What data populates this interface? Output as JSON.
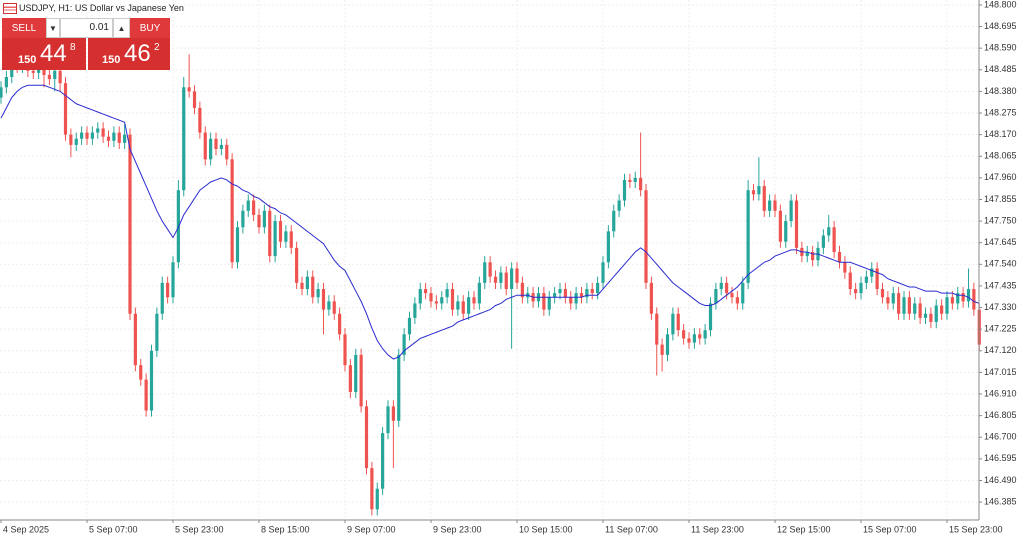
{
  "header": {
    "title": "USDJPY, H1:  US Dollar vs Japanese Yen"
  },
  "trade_panel": {
    "sell_label": "SELL",
    "buy_label": "BUY",
    "volume": "0.01",
    "sell_price": {
      "big_figure": "150",
      "pips": "44",
      "point": "8"
    },
    "buy_price": {
      "big_figure": "150",
      "pips": "46",
      "point": "2"
    }
  },
  "chart_data": {
    "type": "candlestick",
    "grid": true,
    "up_color": "#26a69a",
    "down_color": "#ef5350",
    "categories": [
      "4 Sep 2025",
      null,
      null,
      null,
      null,
      null,
      null,
      null,
      null,
      null,
      null,
      null,
      null,
      null,
      null,
      null,
      "5 Sep 07:00",
      null,
      null,
      null,
      null,
      null,
      null,
      null,
      null,
      null,
      null,
      null,
      null,
      null,
      null,
      null,
      "5 Sep 23:00",
      null,
      null,
      null,
      null,
      null,
      null,
      null,
      null,
      null,
      null,
      null,
      null,
      null,
      null,
      null,
      "8 Sep 15:00",
      null,
      null,
      null,
      null,
      null,
      null,
      null,
      null,
      null,
      null,
      null,
      null,
      null,
      null,
      null,
      "9 Sep 07:00",
      null,
      null,
      null,
      null,
      null,
      null,
      null,
      null,
      null,
      null,
      null,
      null,
      null,
      null,
      null,
      "9 Sep 23:00",
      null,
      null,
      null,
      null,
      null,
      null,
      null,
      null,
      null,
      null,
      null,
      null,
      null,
      null,
      null,
      "10 Sep 15:00",
      null,
      null,
      null,
      null,
      null,
      null,
      null,
      null,
      null,
      null,
      null,
      null,
      null,
      null,
      null,
      "11 Sep 07:00",
      null,
      null,
      null,
      null,
      null,
      null,
      null,
      null,
      null,
      null,
      null,
      null,
      null,
      null,
      null,
      "11 Sep 23:00",
      null,
      null,
      null,
      null,
      null,
      null,
      null,
      null,
      null,
      null,
      null,
      null,
      null,
      null,
      null,
      "12 Sep 15:00",
      null,
      null,
      null,
      null,
      null,
      null,
      null,
      null,
      null,
      null,
      null,
      null,
      null,
      null,
      null,
      "15 Sep 07:00",
      null,
      null,
      null,
      null,
      null,
      null,
      null,
      null,
      null,
      null,
      null,
      null,
      null,
      null,
      null,
      "15 Sep 23:00",
      null,
      null,
      null,
      null,
      null,
      null
    ],
    "open": [
      148.35,
      148.4,
      148.45,
      148.52,
      148.5,
      148.53,
      148.48,
      148.47,
      148.5,
      148.46,
      148.44,
      148.48,
      148.42,
      148.17,
      148.12,
      148.15,
      148.18,
      148.15,
      148.18,
      148.2,
      148.16,
      148.14,
      148.18,
      148.13,
      148.17,
      147.3,
      147.05,
      146.98,
      146.83,
      147.12,
      147.3,
      147.45,
      147.38,
      147.55,
      147.9,
      148.4,
      148.38,
      148.3,
      148.18,
      148.05,
      148.15,
      148.1,
      148.12,
      148.05,
      147.55,
      147.72,
      147.8,
      147.85,
      147.78,
      147.72,
      147.8,
      147.58,
      147.75,
      147.65,
      147.7,
      147.62,
      147.45,
      147.42,
      147.48,
      147.38,
      147.42,
      147.32,
      147.36,
      147.3,
      147.2,
      147.05,
      146.92,
      147.1,
      146.85,
      146.55,
      146.35,
      146.45,
      146.72,
      146.85,
      146.78,
      147.1,
      147.2,
      147.28,
      147.35,
      147.42,
      147.4,
      147.36,
      147.35,
      147.38,
      147.42,
      147.32,
      147.36,
      147.3,
      147.38,
      147.35,
      147.45,
      147.55,
      147.48,
      147.45,
      147.5,
      147.42,
      147.52,
      147.45,
      147.38,
      147.4,
      147.36,
      147.4,
      147.32,
      147.38,
      147.4,
      147.42,
      147.38,
      147.35,
      147.4,
      147.38,
      147.42,
      147.4,
      147.45,
      147.55,
      147.7,
      147.8,
      147.85,
      147.95,
      147.94,
      147.96,
      147.9,
      147.45,
      147.3,
      147.15,
      147.1,
      147.2,
      147.3,
      147.22,
      147.18,
      147.16,
      147.2,
      147.18,
      147.22,
      147.35,
      147.42,
      147.45,
      147.4,
      147.38,
      147.35,
      147.45,
      147.9,
      147.88,
      147.92,
      147.8,
      147.85,
      147.8,
      147.65,
      147.75,
      147.85,
      147.62,
      147.58,
      147.6,
      147.56,
      147.62,
      147.68,
      147.72,
      147.6,
      147.55,
      147.5,
      147.42,
      147.4,
      147.45,
      147.48,
      147.52,
      147.42,
      147.38,
      147.35,
      147.4,
      147.3,
      147.38,
      147.3,
      147.35,
      147.28,
      147.3,
      147.26,
      147.34,
      147.3,
      147.38,
      147.35,
      147.4,
      147.36,
      147.42,
      147.32
    ],
    "high": [
      148.43,
      148.48,
      148.6,
      148.55,
      148.56,
      148.56,
      148.51,
      148.53,
      148.53,
      148.49,
      148.51,
      148.5,
      148.45,
      148.2,
      148.18,
      148.21,
      148.21,
      148.21,
      148.23,
      148.23,
      148.19,
      148.21,
      148.21,
      148.22,
      148.2,
      147.33,
      147.08,
      147.01,
      147.15,
      147.33,
      147.48,
      147.48,
      147.58,
      147.95,
      148.45,
      148.56,
      148.41,
      148.33,
      148.21,
      148.18,
      148.18,
      148.15,
      148.15,
      148.08,
      147.75,
      147.83,
      147.88,
      147.88,
      147.81,
      147.83,
      147.83,
      147.78,
      147.78,
      147.73,
      147.73,
      147.65,
      147.48,
      147.51,
      147.51,
      147.45,
      147.45,
      147.39,
      147.39,
      147.33,
      147.23,
      147.08,
      147.13,
      147.13,
      146.88,
      146.58,
      146.48,
      146.75,
      146.88,
      146.88,
      147.13,
      147.23,
      147.31,
      147.38,
      147.45,
      147.45,
      147.43,
      147.39,
      147.41,
      147.45,
      147.45,
      147.39,
      147.39,
      147.41,
      147.41,
      147.48,
      147.58,
      147.58,
      147.51,
      147.53,
      147.53,
      147.55,
      147.55,
      147.48,
      147.43,
      147.43,
      147.43,
      147.43,
      147.41,
      147.43,
      147.45,
      147.45,
      147.41,
      147.43,
      147.43,
      147.45,
      147.45,
      147.48,
      147.58,
      147.73,
      147.83,
      147.88,
      147.98,
      147.98,
      147.99,
      148.18,
      147.93,
      147.48,
      147.33,
      147.18,
      147.23,
      147.33,
      147.33,
      147.25,
      147.21,
      147.23,
      147.23,
      147.25,
      147.38,
      147.45,
      147.48,
      147.48,
      147.43,
      147.41,
      147.48,
      147.95,
      147.93,
      148.06,
      147.95,
      147.88,
      147.88,
      147.83,
      147.78,
      147.88,
      147.88,
      147.65,
      147.63,
      147.63,
      147.65,
      147.71,
      147.78,
      147.75,
      147.63,
      147.58,
      147.53,
      147.45,
      147.48,
      147.51,
      147.55,
      147.55,
      147.45,
      147.41,
      147.43,
      147.43,
      147.41,
      147.41,
      147.38,
      147.38,
      147.33,
      147.33,
      147.37,
      147.37,
      147.41,
      147.41,
      147.43,
      147.43,
      147.52,
      147.45,
      147.35
    ],
    "low": [
      148.32,
      148.37,
      148.42,
      148.47,
      148.47,
      148.45,
      148.44,
      148.44,
      148.4,
      148.41,
      148.38,
      148.38,
      148.14,
      148.06,
      148.09,
      148.12,
      148.12,
      148.12,
      148.15,
      148.13,
      148.11,
      148.11,
      148.1,
      148.1,
      147.27,
      147.02,
      146.95,
      146.8,
      146.8,
      147.09,
      147.27,
      147.35,
      147.35,
      147.52,
      147.87,
      148.35,
      148.27,
      148.15,
      148.02,
      148.02,
      148.07,
      148.07,
      148.02,
      147.52,
      147.52,
      147.69,
      147.77,
      147.75,
      147.69,
      147.69,
      147.55,
      147.55,
      147.62,
      147.62,
      147.59,
      147.42,
      147.39,
      147.39,
      147.35,
      147.35,
      147.2,
      147.29,
      147.27,
      147.17,
      147.02,
      146.89,
      146.89,
      146.82,
      146.52,
      146.32,
      146.32,
      146.42,
      146.69,
      146.55,
      146.75,
      147.07,
      147.17,
      147.25,
      147.32,
      147.37,
      147.33,
      147.32,
      147.32,
      147.35,
      147.29,
      147.29,
      147.27,
      147.27,
      147.32,
      147.32,
      147.42,
      147.45,
      147.42,
      147.42,
      147.39,
      147.13,
      147.42,
      147.35,
      147.35,
      147.33,
      147.33,
      147.29,
      147.29,
      147.35,
      147.37,
      147.35,
      147.32,
      147.32,
      147.35,
      147.35,
      147.37,
      147.37,
      147.42,
      147.52,
      147.67,
      147.77,
      147.82,
      147.91,
      147.91,
      147.87,
      147.42,
      147.27,
      147.0,
      147.02,
      147.07,
      147.17,
      147.19,
      147.15,
      147.13,
      147.13,
      147.15,
      147.15,
      147.19,
      147.32,
      147.39,
      147.37,
      147.35,
      147.32,
      147.32,
      147.42,
      147.85,
      147.85,
      147.77,
      147.77,
      147.77,
      147.62,
      147.62,
      147.72,
      147.59,
      147.55,
      147.55,
      147.53,
      147.53,
      147.59,
      147.65,
      147.57,
      147.52,
      147.47,
      147.39,
      147.37,
      147.37,
      147.42,
      147.45,
      147.39,
      147.35,
      147.32,
      147.32,
      147.27,
      147.27,
      147.27,
      147.27,
      147.25,
      147.25,
      147.23,
      147.23,
      147.27,
      147.27,
      147.32,
      147.32,
      147.33,
      147.33,
      147.29,
      147.12
    ],
    "close": [
      148.4,
      148.45,
      148.52,
      148.5,
      148.53,
      148.48,
      148.47,
      148.5,
      148.46,
      148.44,
      148.48,
      148.42,
      148.17,
      148.12,
      148.15,
      148.18,
      148.15,
      148.18,
      148.2,
      148.16,
      148.14,
      148.18,
      148.13,
      148.17,
      147.3,
      147.05,
      146.98,
      146.83,
      147.12,
      147.3,
      147.45,
      147.38,
      147.55,
      147.9,
      148.4,
      148.38,
      148.3,
      148.18,
      148.05,
      148.15,
      148.1,
      148.12,
      148.05,
      147.55,
      147.72,
      147.8,
      147.85,
      147.78,
      147.72,
      147.8,
      147.58,
      147.75,
      147.65,
      147.7,
      147.62,
      147.45,
      147.42,
      147.48,
      147.38,
      147.42,
      147.32,
      147.36,
      147.3,
      147.2,
      147.05,
      146.92,
      147.1,
      146.85,
      146.55,
      146.35,
      146.45,
      146.72,
      146.85,
      146.78,
      147.1,
      147.2,
      147.28,
      147.35,
      147.42,
      147.4,
      147.36,
      147.35,
      147.38,
      147.42,
      147.32,
      147.36,
      147.3,
      147.38,
      147.35,
      147.45,
      147.55,
      147.48,
      147.45,
      147.5,
      147.42,
      147.52,
      147.45,
      147.38,
      147.4,
      147.36,
      147.4,
      147.32,
      147.38,
      147.4,
      147.42,
      147.38,
      147.35,
      147.4,
      147.38,
      147.42,
      147.4,
      147.45,
      147.55,
      147.7,
      147.8,
      147.85,
      147.95,
      147.94,
      147.96,
      147.9,
      147.45,
      147.3,
      147.15,
      147.1,
      147.2,
      147.3,
      147.22,
      147.18,
      147.16,
      147.2,
      147.18,
      147.22,
      147.35,
      147.42,
      147.45,
      147.4,
      147.38,
      147.35,
      147.45,
      147.9,
      147.88,
      147.92,
      147.8,
      147.85,
      147.8,
      147.65,
      147.75,
      147.85,
      147.62,
      147.58,
      147.6,
      147.56,
      147.62,
      147.68,
      147.72,
      147.6,
      147.55,
      147.5,
      147.42,
      147.4,
      147.45,
      147.48,
      147.52,
      147.42,
      147.38,
      147.35,
      147.4,
      147.3,
      147.38,
      147.3,
      147.35,
      147.28,
      147.3,
      147.26,
      147.34,
      147.3,
      147.38,
      147.35,
      147.4,
      147.36,
      147.42,
      147.32,
      147.15
    ],
    "ma": {
      "color": "#2b2bd0",
      "values": [
        148.25,
        148.3,
        148.35,
        148.38,
        148.4,
        148.41,
        148.41,
        148.41,
        148.41,
        148.4,
        148.39,
        148.38,
        148.36,
        148.34,
        148.32,
        148.31,
        148.3,
        148.29,
        148.28,
        148.27,
        148.26,
        148.25,
        148.24,
        148.23,
        148.1,
        148.04,
        147.98,
        147.92,
        147.86,
        147.8,
        147.75,
        147.71,
        147.67,
        147.72,
        147.78,
        147.82,
        147.86,
        147.9,
        147.92,
        147.94,
        147.95,
        147.96,
        147.95,
        147.93,
        147.92,
        147.9,
        147.89,
        147.87,
        147.86,
        147.84,
        147.82,
        147.81,
        147.79,
        147.78,
        147.76,
        147.74,
        147.72,
        147.7,
        147.68,
        147.66,
        147.64,
        147.6,
        147.56,
        147.53,
        147.51,
        147.46,
        147.41,
        147.36,
        147.3,
        147.23,
        147.17,
        147.13,
        147.1,
        147.08,
        147.09,
        147.12,
        147.14,
        147.16,
        147.18,
        147.19,
        147.2,
        147.21,
        147.22,
        147.23,
        147.24,
        147.26,
        147.27,
        147.28,
        147.29,
        147.3,
        147.31,
        147.32,
        147.34,
        147.35,
        147.37,
        147.38,
        147.39,
        147.39,
        147.39,
        147.38,
        147.38,
        147.38,
        147.38,
        147.38,
        147.38,
        147.38,
        147.38,
        147.38,
        147.38,
        147.39,
        147.39,
        147.39,
        147.42,
        147.45,
        147.48,
        147.51,
        147.54,
        147.57,
        147.6,
        147.62,
        147.6,
        147.57,
        147.54,
        147.51,
        147.48,
        147.45,
        147.43,
        147.41,
        147.39,
        147.37,
        147.35,
        147.34,
        147.34,
        147.35,
        147.37,
        147.39,
        147.41,
        147.43,
        147.46,
        147.49,
        147.51,
        147.53,
        147.55,
        147.56,
        147.58,
        147.59,
        147.6,
        147.61,
        147.61,
        147.6,
        147.6,
        147.59,
        147.59,
        147.58,
        147.57,
        147.56,
        147.55,
        147.55,
        147.55,
        147.54,
        147.53,
        147.52,
        147.51,
        147.5,
        147.49,
        147.47,
        147.46,
        147.45,
        147.44,
        147.43,
        147.43,
        147.42,
        147.41,
        147.41,
        147.41,
        147.4,
        147.4,
        147.4,
        147.39,
        147.39,
        147.38,
        147.36,
        147.35
      ]
    },
    "ylim": [
      146.298,
      148.824
    ],
    "yticks": [
      {
        "value": 148.8,
        "label": "148.800"
      },
      148.695,
      {
        "value": 148.59,
        "label": "148.590"
      },
      148.485,
      {
        "value": 148.38,
        "label": "148.380"
      },
      148.275,
      {
        "value": 148.17,
        "label": "148.170"
      },
      148.065,
      {
        "value": 147.96,
        "label": "147.960"
      },
      147.855,
      {
        "value": 147.75,
        "label": "147.750"
      },
      147.645,
      {
        "value": 147.54,
        "label": "147.540"
      },
      147.435,
      {
        "value": 147.33,
        "label": "147.330"
      },
      147.225,
      {
        "value": 147.12,
        "label": "147.120"
      },
      147.015,
      {
        "value": 146.91,
        "label": "146.910"
      },
      146.805,
      {
        "value": 146.7,
        "label": "146.700"
      },
      146.595,
      {
        "value": 146.49,
        "label": "146.490"
      },
      146.385
    ]
  }
}
